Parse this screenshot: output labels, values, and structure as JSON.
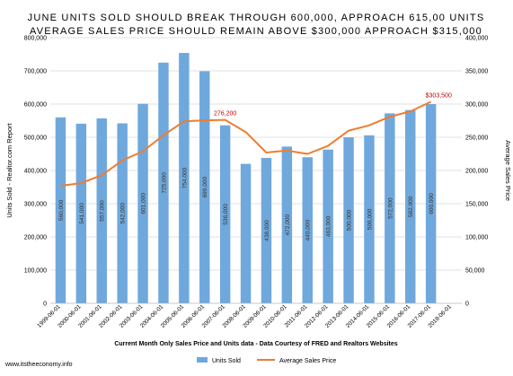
{
  "chart_data": {
    "type": "bar",
    "title_lines": [
      "JUNE UNITS SOLD SHOULD BREAK THROUGH 600,000, APPROACH 615,00 UNITS",
      "AVERAGE SALES PRICE SHOULD REMAIN ABOVE $300,000 APPROACH $315,000"
    ],
    "xlabel": "Current Month Only Sales Price and Units data - Data Courtesy of FRED and Realtors Websites",
    "ylabel_left": "Units Sold - Realtor.com Report",
    "ylabel_right": "Average Sales Price",
    "categories": [
      "1999-06-01",
      "2000-06-01",
      "2001-06-01",
      "2002-06-01",
      "2003-06-01",
      "2004-06-01",
      "2005-06-01",
      "2006-06-01",
      "2007-06-01",
      "2008-06-01",
      "2009-06-01",
      "2010-06-01",
      "2011-06-01",
      "2012-06-01",
      "2013-06-01",
      "2014-06-01",
      "2015-06-01",
      "2016-06-01",
      "2017-06-01",
      "2018-06-01"
    ],
    "series": [
      {
        "name": "Units Sold",
        "type": "bar",
        "axis": "left",
        "color": "#6fa8dc",
        "values": [
          560000,
          541000,
          557000,
          542000,
          601000,
          725000,
          754000,
          699000,
          536000,
          420000,
          438000,
          472000,
          440000,
          463000,
          500000,
          506000,
          572000,
          582000,
          600000,
          null
        ],
        "labels": [
          "560,000",
          "541,000",
          "557,000",
          "542,000",
          "601,000",
          "725,000",
          "754,000",
          "699,000",
          "536,000",
          "",
          "438,000",
          "472,000",
          "440,000",
          "463,000",
          "500,000",
          "506,000",
          "572,000",
          "582,000",
          "600,000",
          ""
        ]
      },
      {
        "name": "Average Sales Price",
        "type": "line",
        "axis": "right",
        "color": "#ed7d31",
        "values": [
          177000,
          181000,
          193000,
          215000,
          229000,
          253000,
          274000,
          275500,
          276200,
          258000,
          227000,
          230000,
          225000,
          237000,
          260000,
          268000,
          281000,
          289000,
          303500,
          null
        ]
      }
    ],
    "ylim_left": [
      0,
      800000
    ],
    "ylim_right": [
      0,
      400000
    ],
    "left_ticks": [
      "0",
      "100,000",
      "200,000",
      "300,000",
      "400,000",
      "500,000",
      "600,000",
      "700,000",
      "800,000"
    ],
    "right_ticks": [
      "0",
      "50,000",
      "100,000",
      "150,000",
      "200,000",
      "250,000",
      "300,000",
      "350,000",
      "400,000"
    ],
    "annotations": [
      {
        "text": "276,200",
        "index": 8,
        "series": 1
      },
      {
        "text": "$303,500",
        "index": 18,
        "series": 1
      }
    ],
    "annotation_color": "#c00000",
    "grid": true,
    "legend_position": "bottom",
    "source_note": "www.itstheeconomy.info"
  }
}
